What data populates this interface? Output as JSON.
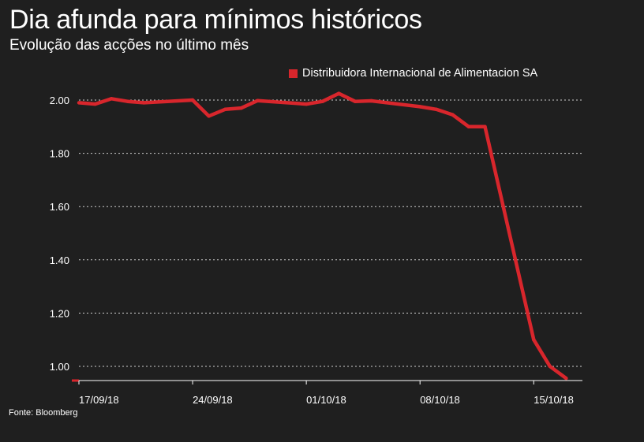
{
  "title": "Dia afunda para mínimos históricos",
  "subtitle": "Evolução das acções no último mês",
  "source": "Fonte: Bloomberg",
  "colors": {
    "background": "#1f1f1f",
    "series": "#d8262c",
    "grid": "#cfcfcf",
    "text": "#ffffff"
  },
  "chart_data": {
    "type": "line",
    "title": "Dia afunda para mínimos históricos",
    "subtitle": "Evolução das acções no último mês",
    "xlabel": "",
    "ylabel": "",
    "ylim": [
      0.95,
      2.04
    ],
    "yticks": [
      "2.00",
      "1.80",
      "1.60",
      "1.40",
      "1.20",
      "1.00"
    ],
    "ytick_values": [
      2.0,
      1.8,
      1.6,
      1.4,
      1.2,
      1.0
    ],
    "xticks": [
      "17/09/18",
      "24/09/18",
      "01/10/18",
      "08/10/18",
      "15/10/18"
    ],
    "xtick_dates": [
      "2018-09-17",
      "2018-09-24",
      "2018-10-01",
      "2018-10-08",
      "2018-10-15"
    ],
    "xlim": [
      "2018-09-17",
      "2018-10-18"
    ],
    "grid": true,
    "legend_position": "top-right",
    "series": [
      {
        "name": "Distribuidora Internacional de Alimentacion SA",
        "color": "#d8262c",
        "x": [
          "2018-09-17",
          "2018-09-18",
          "2018-09-19",
          "2018-09-20",
          "2018-09-21",
          "2018-09-24",
          "2018-09-25",
          "2018-09-26",
          "2018-09-27",
          "2018-09-28",
          "2018-10-01",
          "2018-10-02",
          "2018-10-03",
          "2018-10-04",
          "2018-10-05",
          "2018-10-08",
          "2018-10-09",
          "2018-10-10",
          "2018-10-11",
          "2018-10-12",
          "2018-10-15",
          "2018-10-16",
          "2018-10-17"
        ],
        "values": [
          1.99,
          1.985,
          2.005,
          1.995,
          1.99,
          2.0,
          1.94,
          1.965,
          1.97,
          1.998,
          1.985,
          1.995,
          2.025,
          1.995,
          1.997,
          1.975,
          1.965,
          1.945,
          1.9,
          1.9,
          1.1,
          1.0,
          0.955
        ]
      }
    ]
  }
}
